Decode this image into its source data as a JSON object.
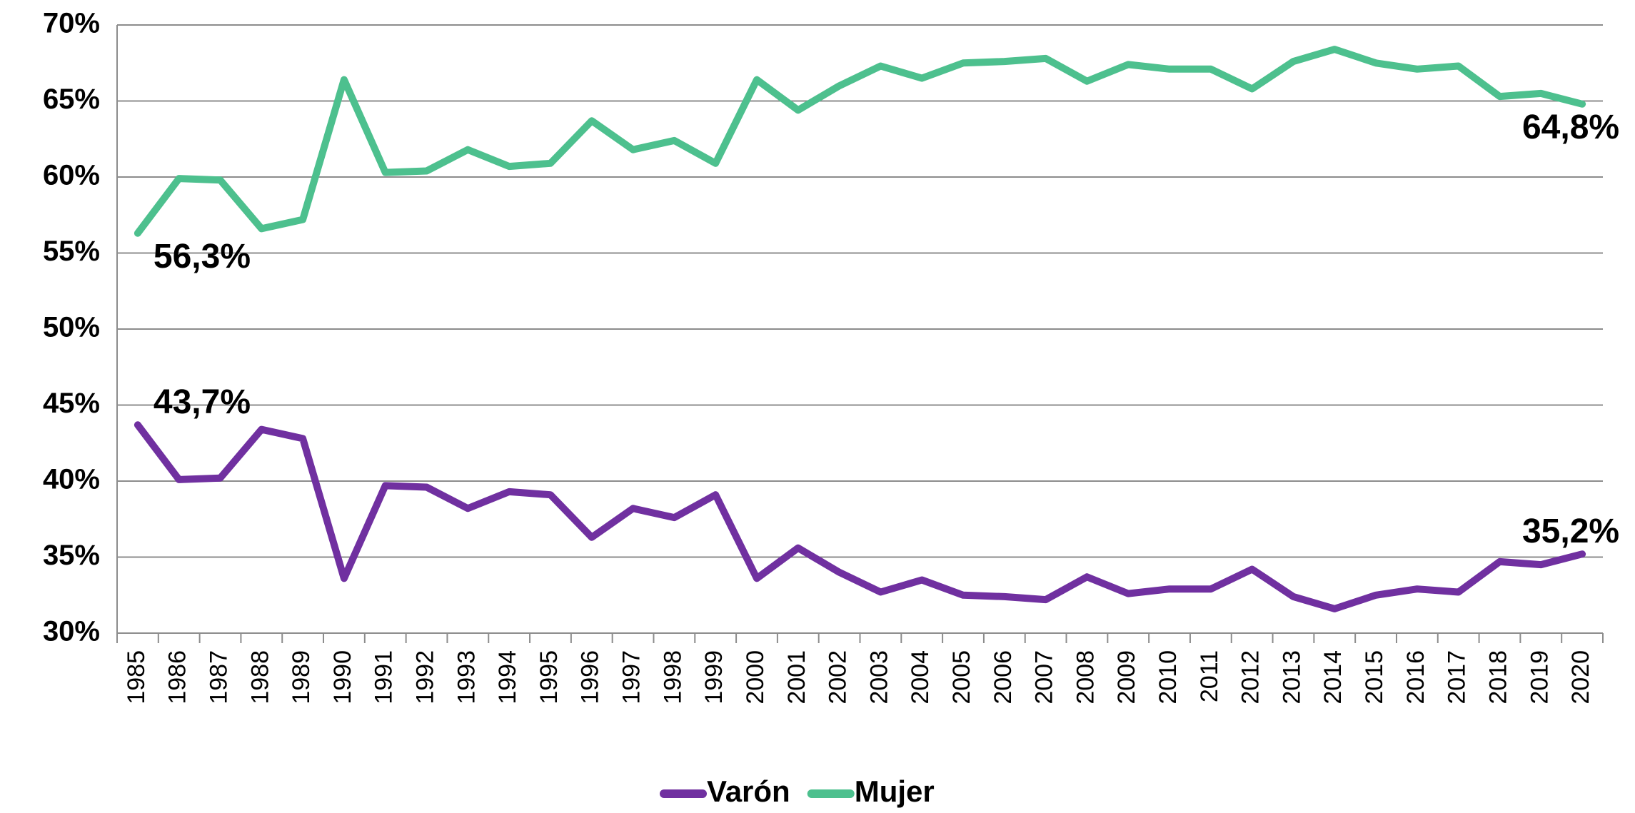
{
  "chart_data": {
    "type": "line",
    "categories": [
      "1985",
      "1986",
      "1987",
      "1988",
      "1989",
      "1990",
      "1991",
      "1992",
      "1993",
      "1994",
      "1995",
      "1996",
      "1997",
      "1998",
      "1999",
      "2000",
      "2001",
      "2002",
      "2003",
      "2004",
      "2005",
      "2006",
      "2007",
      "2008",
      "2009",
      "2010",
      "2011",
      "2012",
      "2013",
      "2014",
      "2015",
      "2016",
      "2017",
      "2018",
      "2019",
      "2020"
    ],
    "series": [
      {
        "name": "Varón",
        "color": "#7030a0",
        "values": [
          43.7,
          40.1,
          40.2,
          43.4,
          42.8,
          33.6,
          39.7,
          39.6,
          38.2,
          39.3,
          39.1,
          36.3,
          38.2,
          37.6,
          39.1,
          33.6,
          35.6,
          34.0,
          32.7,
          33.5,
          32.5,
          32.4,
          32.2,
          33.7,
          32.6,
          32.9,
          32.9,
          34.2,
          32.4,
          31.6,
          32.5,
          32.9,
          32.7,
          34.7,
          34.5,
          35.2
        ],
        "value_labels": [
          "43,7%",
          null,
          null,
          null,
          null,
          null,
          null,
          null,
          null,
          null,
          null,
          null,
          null,
          null,
          null,
          null,
          null,
          null,
          null,
          null,
          null,
          null,
          null,
          null,
          null,
          null,
          null,
          null,
          null,
          null,
          null,
          null,
          null,
          null,
          null,
          "35,2%"
        ]
      },
      {
        "name": "Mujer",
        "color": "#4dc08e",
        "values": [
          56.3,
          59.9,
          59.8,
          56.6,
          57.2,
          66.4,
          60.3,
          60.4,
          61.8,
          60.7,
          60.9,
          63.7,
          61.8,
          62.4,
          60.9,
          66.4,
          64.4,
          66.0,
          67.3,
          66.5,
          67.5,
          67.6,
          67.8,
          66.3,
          67.4,
          67.1,
          67.1,
          65.8,
          67.6,
          68.4,
          67.5,
          67.1,
          67.3,
          65.3,
          65.5,
          64.8
        ],
        "value_labels": [
          "56,3%",
          null,
          null,
          null,
          null,
          null,
          null,
          null,
          null,
          null,
          null,
          null,
          null,
          null,
          null,
          null,
          null,
          null,
          null,
          null,
          null,
          null,
          null,
          null,
          null,
          null,
          null,
          null,
          null,
          null,
          null,
          null,
          null,
          null,
          null,
          "64,8%"
        ]
      }
    ],
    "ylim": [
      30,
      70
    ],
    "yticks": [
      {
        "value": 30,
        "label": "30%"
      },
      {
        "value": 35,
        "label": "35%"
      },
      {
        "value": 40,
        "label": "40%"
      },
      {
        "value": 45,
        "label": "45%"
      },
      {
        "value": 50,
        "label": "50%"
      },
      {
        "value": 55,
        "label": "55%"
      },
      {
        "value": 60,
        "label": "60%"
      },
      {
        "value": 65,
        "label": "65%"
      },
      {
        "value": 70,
        "label": "70%"
      }
    ],
    "grid": true,
    "legend": "bottom"
  }
}
